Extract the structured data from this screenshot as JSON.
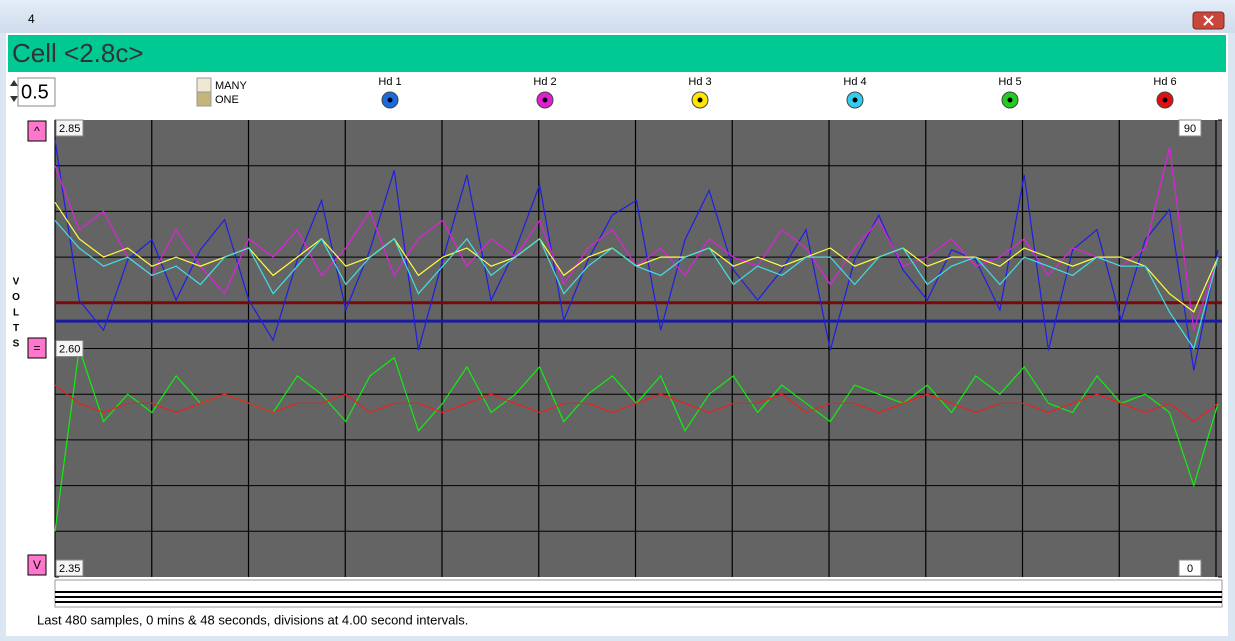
{
  "window": {
    "title": "4"
  },
  "header": {
    "title": "Cell <2.8c>"
  },
  "controls": {
    "spin": "0.5",
    "mode": [
      "MANY",
      "ONE"
    ],
    "heads": [
      {
        "label": "Hd 1",
        "color": "#1a6be0"
      },
      {
        "label": "Hd 2",
        "color": "#e020d0"
      },
      {
        "label": "Hd 3",
        "color": "#ffe600"
      },
      {
        "label": "Hd 4",
        "color": "#33ccee"
      },
      {
        "label": "Hd 5",
        "color": "#22cc22"
      },
      {
        "label": "Hd 6",
        "color": "#e01010"
      }
    ]
  },
  "side": {
    "buttons": [
      "^",
      "=",
      "V"
    ],
    "axis_label": [
      "V",
      "O",
      "L",
      "T",
      "S"
    ]
  },
  "chart_data": {
    "type": "line",
    "ylim": [
      2.35,
      2.85
    ],
    "yticks": [
      {
        "value": 2.85,
        "label": "2.85"
      },
      {
        "value": 2.6,
        "label": "2.60"
      },
      {
        "value": 2.35,
        "label": "2.35"
      }
    ],
    "y2lim": [
      0,
      90
    ],
    "y2ticks": [
      90,
      0
    ],
    "hlines": [
      {
        "value": 2.65,
        "color": "#7a0a0a"
      },
      {
        "value": 2.63,
        "color": "#1a1aa0"
      }
    ],
    "series": [
      {
        "color": "#10ee10",
        "values": [
          2.4,
          2.6,
          2.52,
          2.55,
          2.53,
          2.57,
          2.54,
          2.55,
          2.54,
          2.53,
          2.57,
          2.55,
          2.52,
          2.57,
          2.59,
          2.51,
          2.54,
          2.58,
          2.53,
          2.55,
          2.58,
          2.52,
          2.55,
          2.57,
          2.54,
          2.57,
          2.51,
          2.55,
          2.57,
          2.53,
          2.56,
          2.54,
          2.52,
          2.56,
          2.55,
          2.54,
          2.56,
          2.53,
          2.57,
          2.55,
          2.58,
          2.54,
          2.53,
          2.57,
          2.54,
          2.55,
          2.53,
          2.45,
          2.54
        ]
      },
      {
        "color": "#ee2020",
        "values": [
          2.56,
          2.54,
          2.53,
          2.54,
          2.54,
          2.53,
          2.54,
          2.55,
          2.54,
          2.53,
          2.54,
          2.54,
          2.55,
          2.53,
          2.54,
          2.54,
          2.53,
          2.54,
          2.55,
          2.54,
          2.53,
          2.54,
          2.54,
          2.53,
          2.54,
          2.55,
          2.54,
          2.53,
          2.54,
          2.54,
          2.55,
          2.53,
          2.54,
          2.54,
          2.53,
          2.54,
          2.55,
          2.54,
          2.53,
          2.54,
          2.54,
          2.53,
          2.54,
          2.55,
          2.54,
          2.53,
          2.54,
          2.52,
          2.54
        ]
      },
      {
        "color": "#1e1ee6",
        "values": [
          2.828,
          2.653,
          2.62,
          2.697,
          2.719,
          2.653,
          2.708,
          2.741,
          2.653,
          2.609,
          2.697,
          2.762,
          2.642,
          2.708,
          2.795,
          2.598,
          2.697,
          2.79,
          2.653,
          2.708,
          2.779,
          2.631,
          2.697,
          2.746,
          2.762,
          2.62,
          2.719,
          2.773,
          2.686,
          2.653,
          2.686,
          2.73,
          2.598,
          2.697,
          2.746,
          2.686,
          2.653,
          2.708,
          2.697,
          2.642,
          2.79,
          2.598,
          2.708,
          2.73,
          2.631,
          2.719,
          2.752,
          2.576,
          2.708
        ]
      },
      {
        "color": "#e020e0",
        "values": [
          2.8,
          2.73,
          2.75,
          2.7,
          2.68,
          2.73,
          2.69,
          2.66,
          2.72,
          2.7,
          2.73,
          2.68,
          2.71,
          2.75,
          2.68,
          2.72,
          2.74,
          2.69,
          2.72,
          2.7,
          2.74,
          2.67,
          2.71,
          2.73,
          2.69,
          2.71,
          2.68,
          2.72,
          2.7,
          2.69,
          2.73,
          2.71,
          2.67,
          2.71,
          2.74,
          2.69,
          2.7,
          2.72,
          2.69,
          2.7,
          2.72,
          2.68,
          2.71,
          2.7,
          2.69,
          2.71,
          2.82,
          2.62,
          2.7
        ]
      },
      {
        "color": "#ffff40",
        "values": [
          2.76,
          2.72,
          2.7,
          2.71,
          2.69,
          2.7,
          2.69,
          2.7,
          2.71,
          2.68,
          2.7,
          2.72,
          2.69,
          2.7,
          2.72,
          2.68,
          2.7,
          2.71,
          2.69,
          2.7,
          2.72,
          2.68,
          2.7,
          2.71,
          2.69,
          2.7,
          2.7,
          2.71,
          2.69,
          2.7,
          2.69,
          2.7,
          2.71,
          2.69,
          2.7,
          2.71,
          2.69,
          2.7,
          2.7,
          2.69,
          2.71,
          2.7,
          2.69,
          2.7,
          2.7,
          2.69,
          2.66,
          2.64,
          2.7
        ]
      },
      {
        "color": "#40e0e0",
        "values": [
          2.74,
          2.71,
          2.69,
          2.7,
          2.68,
          2.69,
          2.67,
          2.7,
          2.71,
          2.66,
          2.69,
          2.72,
          2.67,
          2.7,
          2.72,
          2.66,
          2.69,
          2.72,
          2.68,
          2.7,
          2.72,
          2.66,
          2.69,
          2.71,
          2.69,
          2.68,
          2.7,
          2.71,
          2.67,
          2.69,
          2.68,
          2.7,
          2.7,
          2.67,
          2.7,
          2.71,
          2.67,
          2.69,
          2.7,
          2.67,
          2.7,
          2.69,
          2.68,
          2.7,
          2.69,
          2.69,
          2.64,
          2.6,
          2.7
        ]
      }
    ]
  },
  "footer": "Last 480 samples, 0 mins & 48 seconds, divisions at  4.00 second intervals."
}
